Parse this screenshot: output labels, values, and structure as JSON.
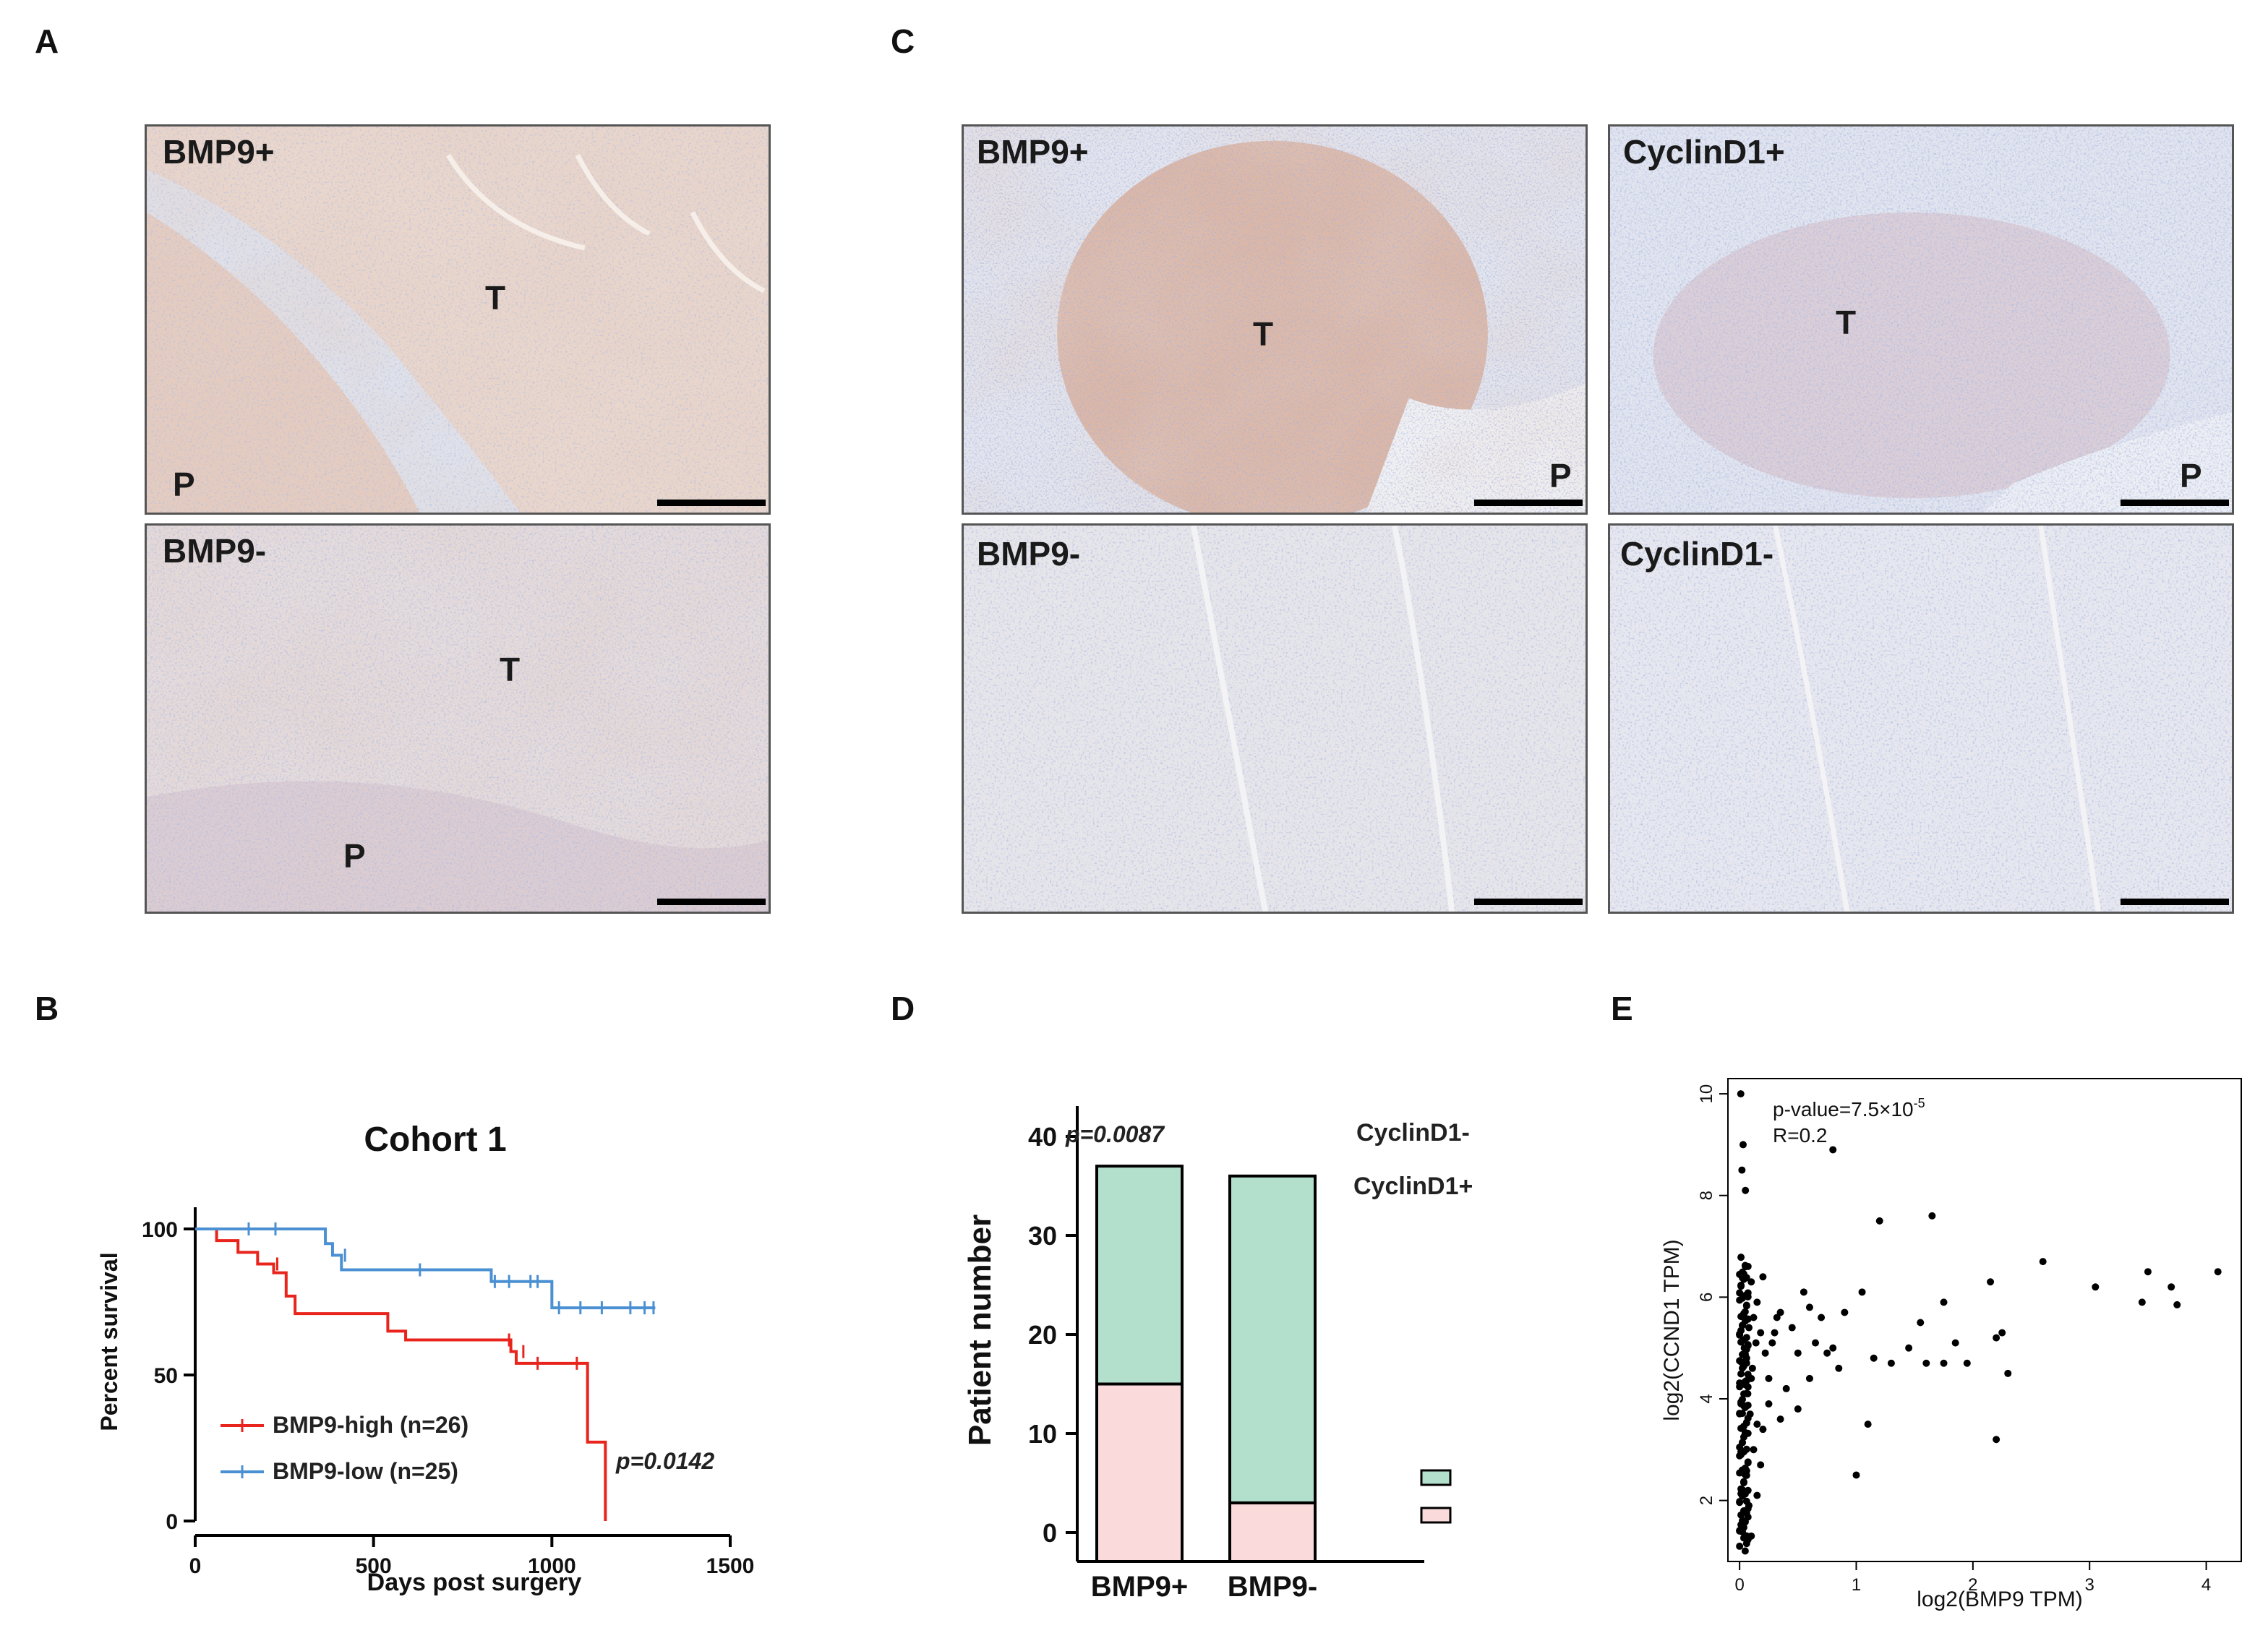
{
  "panel_letters": {
    "a": "A",
    "b": "B",
    "c": "C",
    "d": "D",
    "e": "E"
  },
  "micrographs": {
    "a_top": {
      "label": "BMP9+",
      "regions": [
        "T",
        "P"
      ]
    },
    "a_bottom": {
      "label": "BMP9-",
      "regions": [
        "T",
        "P"
      ]
    },
    "c_top_left": {
      "label": "BMP9+",
      "regions": [
        "T",
        "P"
      ]
    },
    "c_top_right": {
      "label": "CyclinD1+",
      "regions": [
        "T",
        "P"
      ]
    },
    "c_bottom_left": {
      "label": "BMP9-"
    },
    "c_bottom_right": {
      "label": "CyclinD1-"
    }
  },
  "colors": {
    "bmp9_high": "#e8241c",
    "bmp9_low": "#4a90d2",
    "cyclind1_neg": "#b3e0cc",
    "cyclind1_pos": "#fadadb",
    "tissue_stain_brown": "#c9a087",
    "tissue_hematoxylin": "#7f90c0"
  },
  "chart_data": [
    {
      "id": "B",
      "type": "line",
      "title": "Cohort 1",
      "xlabel": "Days post surgery",
      "ylabel": "Percent survival",
      "xlim": [
        0,
        1500
      ],
      "ylim": [
        0,
        100
      ],
      "xticks": [
        0,
        500,
        1000,
        1500
      ],
      "yticks": [
        0,
        50,
        100
      ],
      "annotation": "p=0.0142",
      "series": [
        {
          "name": "BMP9-high (n=26)",
          "step_points": [
            [
              0,
              100
            ],
            [
              60,
              100
            ],
            [
              60,
              96
            ],
            [
              120,
              96
            ],
            [
              120,
              92
            ],
            [
              175,
              92
            ],
            [
              175,
              88
            ],
            [
              220,
              88
            ],
            [
              220,
              85
            ],
            [
              255,
              85
            ],
            [
              255,
              77
            ],
            [
              280,
              77
            ],
            [
              280,
              71
            ],
            [
              540,
              71
            ],
            [
              540,
              65
            ],
            [
              590,
              65
            ],
            [
              590,
              62
            ],
            [
              885,
              62
            ],
            [
              885,
              58
            ],
            [
              900,
              58
            ],
            [
              900,
              54
            ],
            [
              1100,
              54
            ],
            [
              1100,
              27
            ],
            [
              1150,
              27
            ],
            [
              1150,
              0
            ]
          ],
          "censors": [
            [
              230,
              88
            ],
            [
              880,
              62
            ],
            [
              920,
              58
            ],
            [
              960,
              54
            ],
            [
              1070,
              54
            ]
          ]
        },
        {
          "name": "BMP9-low (n=25)",
          "step_points": [
            [
              0,
              100
            ],
            [
              365,
              100
            ],
            [
              365,
              95
            ],
            [
              385,
              95
            ],
            [
              385,
              91
            ],
            [
              410,
              91
            ],
            [
              410,
              86
            ],
            [
              830,
              86
            ],
            [
              830,
              82
            ],
            [
              1000,
              82
            ],
            [
              1000,
              73
            ],
            [
              1290,
              73
            ]
          ],
          "censors": [
            [
              150,
              100
            ],
            [
              225,
              100
            ],
            [
              420,
              91
            ],
            [
              630,
              86
            ],
            [
              840,
              82
            ],
            [
              880,
              82
            ],
            [
              940,
              82
            ],
            [
              960,
              82
            ],
            [
              1020,
              73
            ],
            [
              1080,
              73
            ],
            [
              1140,
              73
            ],
            [
              1220,
              73
            ],
            [
              1260,
              73
            ],
            [
              1285,
              73
            ]
          ]
        }
      ]
    },
    {
      "id": "D",
      "type": "bar",
      "stacked": true,
      "ylabel": "Patient number",
      "xlabel": "",
      "categories": [
        "BMP9+",
        "BMP9-"
      ],
      "ylim": [
        0,
        40
      ],
      "yticks": [
        0,
        10,
        20,
        30,
        40
      ],
      "annotation": "p=0.0087",
      "series": [
        {
          "name": "CyclinD1+",
          "values": [
            15,
            3
          ]
        },
        {
          "name": "CyclinD1-",
          "values": [
            22,
            33
          ]
        }
      ]
    },
    {
      "id": "E",
      "type": "scatter",
      "xlabel": "log2(BMP9 TPM)",
      "ylabel": "log2(CCND1 TPM)",
      "xlim": [
        -0.1,
        4.3
      ],
      "ylim": [
        0.8,
        10.3
      ],
      "xticks": [
        0,
        1,
        2,
        3,
        4
      ],
      "yticks": [
        2,
        4,
        6,
        8,
        10
      ],
      "annotation_p": "p-value=7.5×10",
      "annotation_p_exp": "-5",
      "annotation_r": "R=0.2",
      "points": [
        [
          0.01,
          10.0
        ],
        [
          0.03,
          9.0
        ],
        [
          0.02,
          8.5
        ],
        [
          0.05,
          8.1
        ],
        [
          0.8,
          8.9
        ],
        [
          1.2,
          7.5
        ],
        [
          1.65,
          7.6
        ],
        [
          2.6,
          6.7
        ],
        [
          3.5,
          6.5
        ],
        [
          3.7,
          6.2
        ],
        [
          4.1,
          6.5
        ],
        [
          3.05,
          6.2
        ],
        [
          3.45,
          5.9
        ],
        [
          3.75,
          5.85
        ],
        [
          1.75,
          5.9
        ],
        [
          1.55,
          5.5
        ],
        [
          1.85,
          5.1
        ],
        [
          1.45,
          5.0
        ],
        [
          1.95,
          4.7
        ],
        [
          2.2,
          5.2
        ],
        [
          2.25,
          5.3
        ],
        [
          2.3,
          4.5
        ],
        [
          2.15,
          6.3
        ],
        [
          2.2,
          3.2
        ],
        [
          1.05,
          6.1
        ],
        [
          1.1,
          3.5
        ],
        [
          1.0,
          2.5
        ],
        [
          1.6,
          4.7
        ],
        [
          1.3,
          4.7
        ],
        [
          1.15,
          4.8
        ],
        [
          1.75,
          4.7
        ],
        [
          0.55,
          6.1
        ],
        [
          0.6,
          5.8
        ],
        [
          0.7,
          5.6
        ],
        [
          0.65,
          5.1
        ],
        [
          0.8,
          5.0
        ],
        [
          0.5,
          4.9
        ],
        [
          0.45,
          5.4
        ],
        [
          0.75,
          4.9
        ],
        [
          0.85,
          4.6
        ],
        [
          0.9,
          5.7
        ],
        [
          0.35,
          5.7
        ],
        [
          0.3,
          5.3
        ],
        [
          0.25,
          4.4
        ],
        [
          0.4,
          4.2
        ],
        [
          0.6,
          4.4
        ],
        [
          0.5,
          3.8
        ],
        [
          0.35,
          3.6
        ],
        [
          0.25,
          3.9
        ],
        [
          0.2,
          3.4
        ],
        [
          0.15,
          3.5
        ],
        [
          0.18,
          2.7
        ],
        [
          0.15,
          2.1
        ],
        [
          0.08,
          1.9
        ],
        [
          0.1,
          1.3
        ],
        [
          0.12,
          3.0
        ],
        [
          0.22,
          4.9
        ],
        [
          0.28,
          5.1
        ],
        [
          0.32,
          5.6
        ],
        [
          0.2,
          6.4
        ],
        [
          0.15,
          5.9
        ],
        [
          0.05,
          6.6
        ],
        [
          0.1,
          6.3
        ],
        [
          0.04,
          5.0
        ],
        [
          0.06,
          4.8
        ],
        [
          0.08,
          5.4
        ],
        [
          0.12,
          5.6
        ],
        [
          0.1,
          4.4
        ],
        [
          0.14,
          5.1
        ],
        [
          0.18,
          5.3
        ],
        [
          0.07,
          4.1
        ],
        [
          0.09,
          3.7
        ],
        [
          0.11,
          4.6
        ]
      ]
    }
  ]
}
